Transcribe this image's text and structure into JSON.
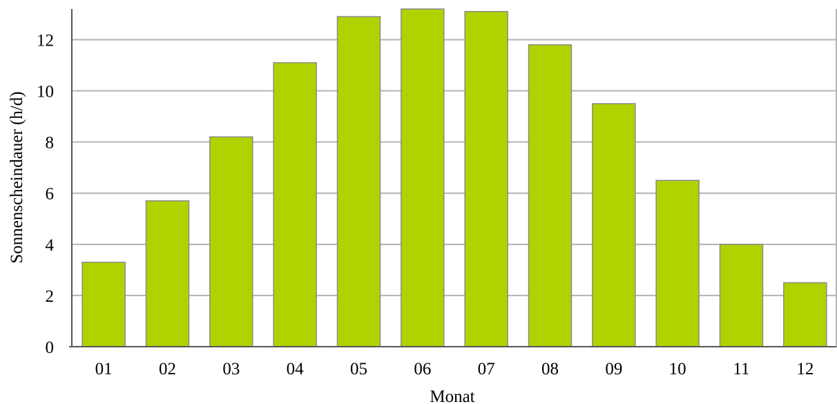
{
  "chart_data": {
    "type": "bar",
    "categories": [
      "01",
      "02",
      "03",
      "04",
      "05",
      "06",
      "07",
      "08",
      "09",
      "10",
      "11",
      "12"
    ],
    "values": [
      3.3,
      5.7,
      8.2,
      11.1,
      12.9,
      13.2,
      13.1,
      11.8,
      9.5,
      6.5,
      4.0,
      2.5
    ],
    "xlabel": "Monat",
    "ylabel": "Sonnenscheindauer (h/d)",
    "ylim": [
      0,
      13.2
    ],
    "yticks": [
      0,
      2,
      4,
      6,
      8,
      10,
      12
    ],
    "grid": true,
    "bar_color": "#b2d200",
    "legend": "none"
  }
}
